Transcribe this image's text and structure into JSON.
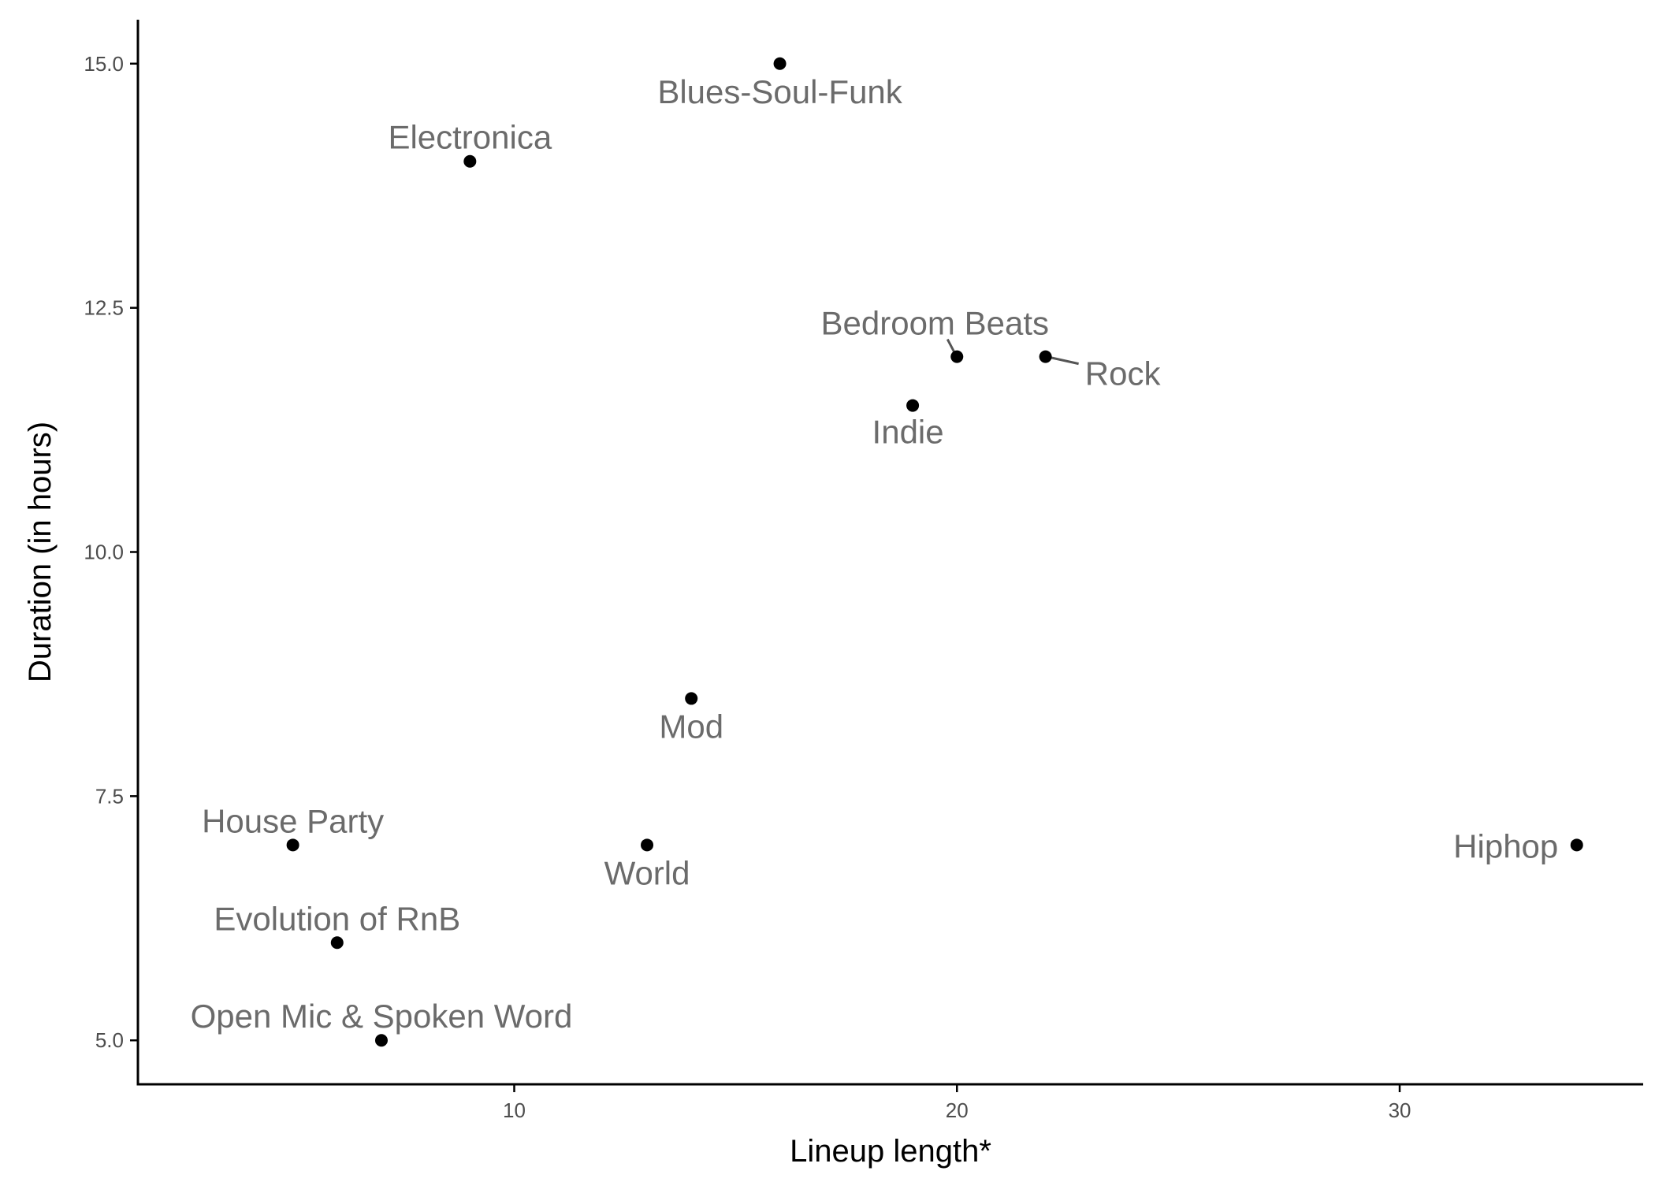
{
  "chart_data": {
    "type": "scatter",
    "title": "",
    "xlabel": "Lineup length*",
    "ylabel": "Duration (in hours)",
    "xlim": [
      1.5,
      35.5
    ],
    "ylim": [
      4.55,
      15.45
    ],
    "x_ticks": [
      10,
      20,
      30
    ],
    "x_tick_labels": [
      "10",
      "20",
      "30"
    ],
    "y_ticks": [
      5.0,
      7.5,
      10.0,
      12.5,
      15.0
    ],
    "y_tick_labels": [
      "5.0",
      "7.5",
      "10.0",
      "12.5",
      "15.0"
    ],
    "grid": false,
    "legend": "none",
    "colors": {
      "point": "#000000",
      "label": "#6b6b6b",
      "axis": "#000000",
      "tick_label": "#4d4d4d"
    },
    "points": [
      {
        "label": "Blues-Soul-Funk",
        "x": 16,
        "y": 15.0
      },
      {
        "label": "Electronica",
        "x": 9,
        "y": 14.0
      },
      {
        "label": "Bedroom Beats",
        "x": 20,
        "y": 12.0
      },
      {
        "label": "Rock",
        "x": 22,
        "y": 12.0
      },
      {
        "label": "Indie",
        "x": 19,
        "y": 11.5
      },
      {
        "label": "Mod",
        "x": 14,
        "y": 8.5
      },
      {
        "label": "House Party",
        "x": 5,
        "y": 7.0
      },
      {
        "label": "World",
        "x": 13,
        "y": 7.0
      },
      {
        "label": "Hiphop",
        "x": 34,
        "y": 7.0
      },
      {
        "label": "Evolution of RnB",
        "x": 6,
        "y": 6.0
      },
      {
        "label": "Open Mic & Spoken Word",
        "x": 7,
        "y": 5.0
      }
    ]
  }
}
